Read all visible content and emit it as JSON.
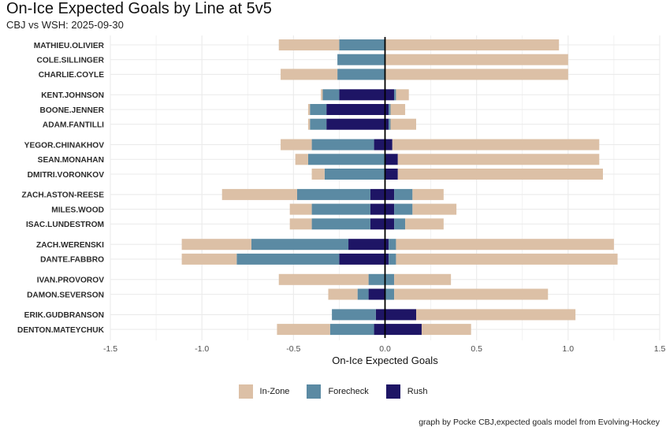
{
  "title": "On-Ice Expected Goals by Line at 5v5",
  "subtitle": "CBJ vs WSH: 2025-09-30",
  "caption": "graph by Pocke CBJ,expected goals model from Evolving-Hockey",
  "colors": {
    "in_zone": "#dcc0a6",
    "forecheck": "#5b8aa3",
    "rush": "#1e1565",
    "grid": "#ebebeb",
    "zero_line": "#000000"
  },
  "chart_data": {
    "type": "bar",
    "orientation": "horizontal",
    "stacked": true,
    "title": "On-Ice Expected Goals by Line at 5v5",
    "subtitle": "CBJ vs WSH: 2025-09-30",
    "xlabel": "On-Ice Expected Goals",
    "ylabel": "",
    "xlim": [
      -1.5,
      1.5
    ],
    "x_ticks": [
      -1.5,
      -1.0,
      -0.5,
      0.0,
      0.5,
      1.0,
      1.5
    ],
    "x_tick_labels": [
      "-1.5",
      "-1.0",
      "-0.5",
      "0.0",
      "0.5",
      "1.0",
      "1.5"
    ],
    "grid": true,
    "legend_position": "bottom",
    "legend": [
      {
        "key": "in_zone",
        "label": "In-Zone"
      },
      {
        "key": "forecheck",
        "label": "Forecheck"
      },
      {
        "key": "rush",
        "label": "Rush"
      }
    ],
    "players": [
      {
        "name": "MATHIEU.OLIVIER",
        "group": 1,
        "against": {
          "rush": 0.0,
          "forecheck": 0.25,
          "in_zone": 0.33
        },
        "for": {
          "rush": 0.0,
          "forecheck": 0.0,
          "in_zone": 0.95
        }
      },
      {
        "name": "COLE.SILLINGER",
        "group": 1,
        "against": {
          "rush": 0.0,
          "forecheck": 0.26,
          "in_zone": 0.0
        },
        "for": {
          "rush": 0.0,
          "forecheck": 0.0,
          "in_zone": 1.0
        }
      },
      {
        "name": "CHARLIE.COYLE",
        "group": 1,
        "against": {
          "rush": 0.0,
          "forecheck": 0.26,
          "in_zone": 0.31
        },
        "for": {
          "rush": 0.0,
          "forecheck": 0.0,
          "in_zone": 1.0
        }
      },
      {
        "name": "KENT.JOHNSON",
        "group": 2,
        "against": {
          "rush": 0.25,
          "forecheck": 0.09,
          "in_zone": 0.01
        },
        "for": {
          "rush": 0.05,
          "forecheck": 0.01,
          "in_zone": 0.07
        }
      },
      {
        "name": "BOONE.JENNER",
        "group": 2,
        "against": {
          "rush": 0.32,
          "forecheck": 0.09,
          "in_zone": 0.01
        },
        "for": {
          "rush": 0.02,
          "forecheck": 0.01,
          "in_zone": 0.08
        }
      },
      {
        "name": "ADAM.FANTILLI",
        "group": 2,
        "against": {
          "rush": 0.32,
          "forecheck": 0.09,
          "in_zone": 0.01
        },
        "for": {
          "rush": 0.02,
          "forecheck": 0.01,
          "in_zone": 0.14
        }
      },
      {
        "name": "YEGOR.CHINAKHOV",
        "group": 3,
        "against": {
          "rush": 0.06,
          "forecheck": 0.34,
          "in_zone": 0.17
        },
        "for": {
          "rush": 0.04,
          "forecheck": 0.0,
          "in_zone": 1.13
        }
      },
      {
        "name": "SEAN.MONAHAN",
        "group": 3,
        "against": {
          "rush": 0.0,
          "forecheck": 0.42,
          "in_zone": 0.07
        },
        "for": {
          "rush": 0.07,
          "forecheck": 0.0,
          "in_zone": 1.1
        }
      },
      {
        "name": "DMITRI.VORONKOV",
        "group": 3,
        "against": {
          "rush": 0.0,
          "forecheck": 0.33,
          "in_zone": 0.07
        },
        "for": {
          "rush": 0.07,
          "forecheck": 0.0,
          "in_zone": 1.12
        }
      },
      {
        "name": "ZACH.ASTON-REESE",
        "group": 4,
        "against": {
          "rush": 0.08,
          "forecheck": 0.4,
          "in_zone": 0.41
        },
        "for": {
          "rush": 0.05,
          "forecheck": 0.1,
          "in_zone": 0.17
        }
      },
      {
        "name": "MILES.WOOD",
        "group": 4,
        "against": {
          "rush": 0.08,
          "forecheck": 0.32,
          "in_zone": 0.12
        },
        "for": {
          "rush": 0.05,
          "forecheck": 0.1,
          "in_zone": 0.24
        }
      },
      {
        "name": "ISAC.LUNDESTROM",
        "group": 4,
        "against": {
          "rush": 0.08,
          "forecheck": 0.32,
          "in_zone": 0.12
        },
        "for": {
          "rush": 0.05,
          "forecheck": 0.06,
          "in_zone": 0.21
        }
      },
      {
        "name": "ZACH.WERENSKI",
        "group": 5,
        "against": {
          "rush": 0.2,
          "forecheck": 0.53,
          "in_zone": 0.38
        },
        "for": {
          "rush": 0.02,
          "forecheck": 0.04,
          "in_zone": 1.19
        }
      },
      {
        "name": "DANTE.FABBRO",
        "group": 5,
        "against": {
          "rush": 0.25,
          "forecheck": 0.56,
          "in_zone": 0.3
        },
        "for": {
          "rush": 0.02,
          "forecheck": 0.04,
          "in_zone": 1.21
        }
      },
      {
        "name": "IVAN.PROVOROV",
        "group": 6,
        "against": {
          "rush": 0.0,
          "forecheck": 0.09,
          "in_zone": 0.49
        },
        "for": {
          "rush": 0.0,
          "forecheck": 0.05,
          "in_zone": 0.31
        }
      },
      {
        "name": "DAMON.SEVERSON",
        "group": 6,
        "against": {
          "rush": 0.09,
          "forecheck": 0.06,
          "in_zone": 0.16
        },
        "for": {
          "rush": 0.0,
          "forecheck": 0.05,
          "in_zone": 0.84
        }
      },
      {
        "name": "ERIK.GUDBRANSON",
        "group": 7,
        "against": {
          "rush": 0.05,
          "forecheck": 0.24,
          "in_zone": 0.0
        },
        "for": {
          "rush": 0.17,
          "forecheck": 0.0,
          "in_zone": 0.87
        }
      },
      {
        "name": "DENTON.MATEYCHUK",
        "group": 7,
        "against": {
          "rush": 0.06,
          "forecheck": 0.24,
          "in_zone": 0.29
        },
        "for": {
          "rush": 0.2,
          "forecheck": 0.0,
          "in_zone": 0.27
        }
      }
    ]
  }
}
